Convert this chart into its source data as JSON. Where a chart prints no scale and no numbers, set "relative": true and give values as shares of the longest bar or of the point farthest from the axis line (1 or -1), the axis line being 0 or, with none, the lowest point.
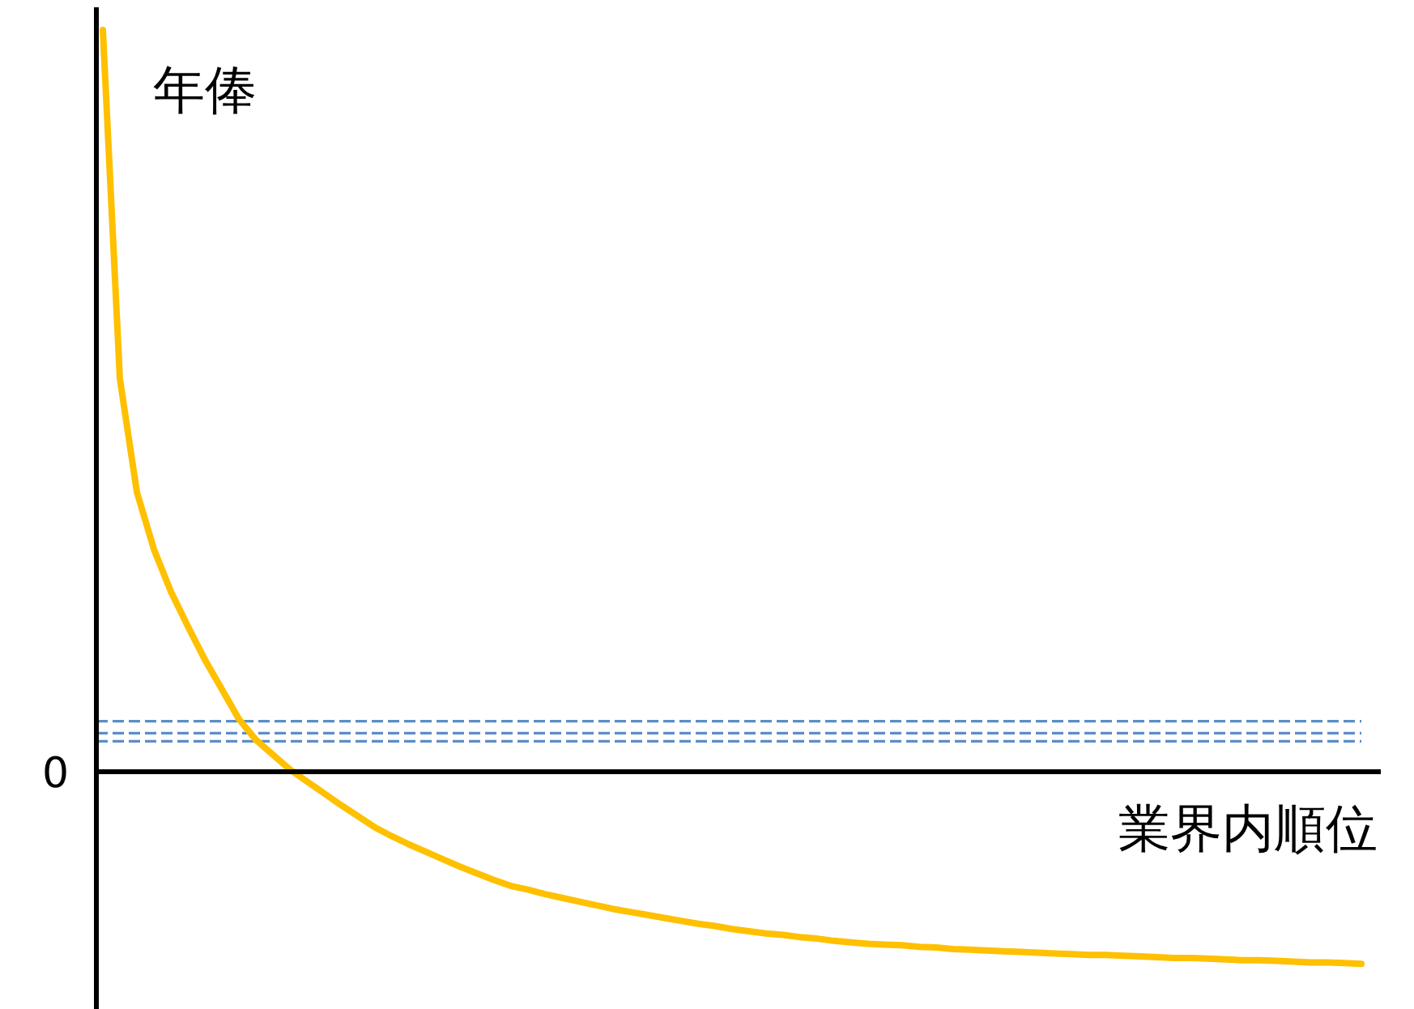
{
  "chart_data": {
    "type": "line",
    "relative": true,
    "xlabel": "業界内順位",
    "ylabel": "年俸",
    "annotations": [
      "0"
    ],
    "categories": [
      null,
      null,
      null,
      null,
      null,
      null,
      null,
      null,
      null,
      null,
      null,
      null,
      null,
      null,
      null,
      null,
      null,
      null,
      null,
      null,
      null,
      null,
      null,
      null,
      null,
      null,
      null,
      null,
      null,
      null,
      null,
      null,
      null,
      null,
      null,
      null,
      null,
      null,
      null,
      null,
      null,
      null,
      null,
      null,
      null,
      null,
      null,
      null,
      null,
      null,
      null,
      null,
      null,
      null,
      null,
      null,
      null,
      null,
      null,
      null,
      null,
      null,
      null,
      null,
      null,
      null,
      null,
      null,
      null,
      null,
      null,
      null,
      null,
      null,
      null
    ],
    "series": [
      {
        "color": "#ffc000",
        "values": [
          1.0,
          0.53,
          0.377,
          0.3,
          0.243,
          0.196,
          0.151,
          0.111,
          0.071,
          0.043,
          0.023,
          0.003,
          -0.013,
          -0.029,
          -0.045,
          -0.06,
          -0.075,
          -0.087,
          -0.098,
          -0.108,
          -0.118,
          -0.128,
          -0.137,
          -0.146,
          -0.154,
          -0.159,
          -0.165,
          -0.17,
          -0.175,
          -0.18,
          -0.185,
          -0.189,
          -0.193,
          -0.197,
          -0.201,
          -0.205,
          -0.208,
          -0.212,
          -0.215,
          -0.218,
          -0.22,
          -0.223,
          -0.225,
          -0.228,
          -0.23,
          -0.232,
          -0.233,
          -0.234,
          -0.236,
          -0.237,
          -0.239,
          -0.24,
          -0.241,
          -0.242,
          -0.243,
          -0.244,
          -0.245,
          -0.246,
          -0.247,
          -0.247,
          -0.248,
          -0.249,
          -0.25,
          -0.251,
          -0.251,
          -0.252,
          -0.253,
          -0.254,
          -0.254,
          -0.255,
          -0.256,
          -0.257,
          -0.257,
          -0.258,
          -0.259
        ]
      }
    ],
    "ref_lines": [
      {
        "axis": "y",
        "value": 0.068,
        "color": "#5b8ec7",
        "line_style": "dashed"
      },
      {
        "axis": "y",
        "value": 0.052,
        "color": "#5b8ec7",
        "line_style": "dashed"
      },
      {
        "axis": "y",
        "value": 0.041,
        "color": "#5b8ec7",
        "line_style": "dashed"
      }
    ]
  }
}
